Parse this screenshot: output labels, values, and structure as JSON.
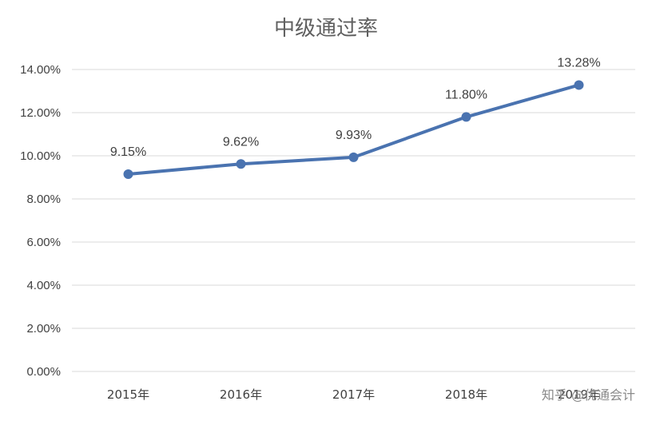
{
  "colors": {
    "series": "#4a73b0",
    "grid": "#d9d9d9",
    "text": "#404040"
  },
  "chart_data": {
    "type": "line",
    "title": "中级通过率",
    "xlabel": "",
    "ylabel": "",
    "ylim": [
      0,
      14
    ],
    "y_tick_values": [
      0,
      2,
      4,
      6,
      8,
      10,
      12,
      14
    ],
    "y_tick_labels": [
      "0.00%",
      "2.00%",
      "4.00%",
      "6.00%",
      "8.00%",
      "10.00%",
      "12.00%",
      "14.00%"
    ],
    "categories": [
      "2015年",
      "2016年",
      "2017年",
      "2018年",
      "2019年"
    ],
    "grid": true,
    "legend": "none",
    "series": [
      {
        "values": [
          9.15,
          9.62,
          9.93,
          11.8,
          13.28
        ],
        "data_labels": [
          "9.15%",
          "9.62%",
          "9.93%",
          "11.80%",
          "13.28%"
        ]
      }
    ]
  },
  "watermark": {
    "text": "知乎 @优通会计"
  }
}
